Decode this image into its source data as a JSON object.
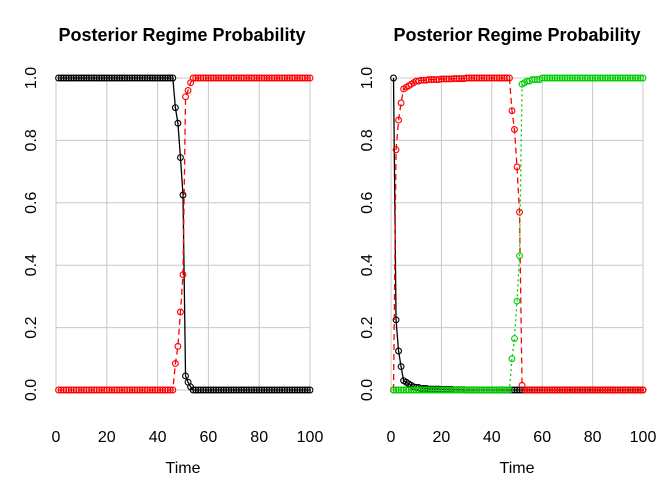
{
  "chart_data": [
    {
      "type": "line",
      "title": "Posterior Regime Probability",
      "xlabel": "Time",
      "ylabel": "",
      "xlim": [
        0,
        100
      ],
      "ylim": [
        0,
        1
      ],
      "xticks": [
        "0",
        "20",
        "40",
        "60",
        "80",
        "100"
      ],
      "yticks": [
        "0.0",
        "0.2",
        "0.4",
        "0.6",
        "0.8",
        "1.0"
      ],
      "grid": true,
      "series": [
        {
          "color": "#000000",
          "linestyle": "solid",
          "changes": [
            [
              46,
              1.0
            ],
            [
              47,
              0.905
            ],
            [
              48,
              0.855
            ],
            [
              49,
              0.745
            ],
            [
              50,
              0.625
            ],
            [
              51,
              0.045
            ],
            [
              52,
              0.025
            ],
            [
              53,
              0.01
            ],
            [
              54,
              0.0
            ]
          ]
        },
        {
          "color": "#ff0000",
          "linestyle": "dashed",
          "changes": [
            [
              46,
              0.0
            ],
            [
              47,
              0.085
            ],
            [
              48,
              0.14
            ],
            [
              49,
              0.25
            ],
            [
              50,
              0.37
            ],
            [
              51,
              0.94
            ],
            [
              52,
              0.96
            ],
            [
              53,
              0.985
            ],
            [
              54,
              1.0
            ]
          ]
        }
      ]
    },
    {
      "type": "line",
      "title": "Posterior Regime Probability",
      "xlabel": "Time",
      "ylabel": "",
      "xlim": [
        0,
        100
      ],
      "ylim": [
        0,
        1
      ],
      "xticks": [
        "0",
        "20",
        "40",
        "60",
        "80",
        "100"
      ],
      "yticks": [
        "0.0",
        "0.2",
        "0.4",
        "0.6",
        "0.8",
        "1.0"
      ],
      "grid": true,
      "series": [
        {
          "color": "#000000",
          "linestyle": "solid",
          "changes": [
            [
              1,
              1.0
            ],
            [
              2,
              0.225
            ],
            [
              3,
              0.125
            ],
            [
              4,
              0.075
            ],
            [
              5,
              0.03
            ],
            [
              6,
              0.025
            ],
            [
              7,
              0.02
            ],
            [
              8,
              0.015
            ],
            [
              9,
              0.01
            ],
            [
              10,
              0.008
            ],
            [
              12,
              0.005
            ],
            [
              15,
              0.003
            ],
            [
              20,
              0.002
            ],
            [
              25,
              0.001
            ],
            [
              30,
              0.0
            ]
          ]
        },
        {
          "color": "#ff0000",
          "linestyle": "dashed",
          "changes": [
            [
              1,
              0.0
            ],
            [
              2,
              0.77
            ],
            [
              3,
              0.865
            ],
            [
              4,
              0.92
            ],
            [
              5,
              0.965
            ],
            [
              6,
              0.97
            ],
            [
              7,
              0.975
            ],
            [
              8,
              0.98
            ],
            [
              9,
              0.985
            ],
            [
              10,
              0.99
            ],
            [
              12,
              0.993
            ],
            [
              15,
              0.995
            ],
            [
              20,
              0.997
            ],
            [
              25,
              0.998
            ],
            [
              30,
              1.0
            ],
            [
              47,
              1.0
            ],
            [
              48,
              0.895
            ],
            [
              49,
              0.835
            ],
            [
              50,
              0.715
            ],
            [
              51,
              0.57
            ],
            [
              52,
              0.015
            ],
            [
              53,
              0.0
            ]
          ]
        },
        {
          "color": "#00cd00",
          "linestyle": "dotted",
          "changes": [
            [
              47,
              0.0
            ],
            [
              48,
              0.1
            ],
            [
              49,
              0.165
            ],
            [
              50,
              0.285
            ],
            [
              51,
              0.43
            ],
            [
              52,
              0.98
            ],
            [
              53,
              0.985
            ],
            [
              54,
              0.99
            ],
            [
              56,
              0.995
            ],
            [
              60,
              1.0
            ]
          ]
        }
      ]
    }
  ]
}
